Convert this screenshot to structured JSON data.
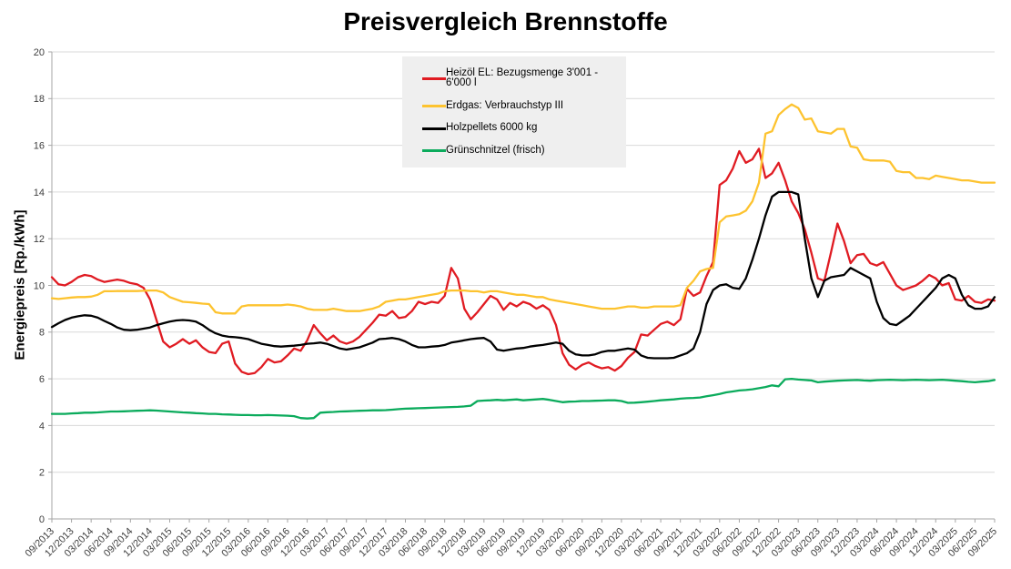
{
  "chart_data": {
    "type": "line",
    "title": "Preisvergleich Brennstoffe",
    "ylabel": "Energiepreis [Rp./kWh]",
    "xlabel": "",
    "ylim": [
      0,
      20
    ],
    "y_tick_step": 2,
    "y_tick_labels": [
      "0",
      "2",
      "4",
      "6",
      "8",
      "10",
      "12",
      "14",
      "16",
      "18",
      "20"
    ],
    "grid": true,
    "legend_position": "top-center-inside",
    "x_interval": "monthly",
    "x_start": "09/2013",
    "x_end": "09/2025",
    "x_tick_labels": [
      "09/2013",
      "12/2013",
      "03/2014",
      "06/2014",
      "09/2014",
      "12/2014",
      "03/2015",
      "06/2015",
      "09/2015",
      "12/2015",
      "03/2016",
      "06/2016",
      "09/2016",
      "12/2016",
      "03/2017",
      "06/2017",
      "09/2017",
      "12/2017",
      "03/2018",
      "06/2018",
      "09/2018",
      "12/2018",
      "03/2019",
      "06/2019",
      "09/2019",
      "12/2019",
      "03/2020",
      "06/2020",
      "09/2020",
      "12/2020",
      "03/2021",
      "06/2021",
      "09/2021",
      "12/2021",
      "03/2022",
      "06/2022",
      "09/2022",
      "12/2022",
      "03/2023",
      "06/2023",
      "09/2023",
      "12/2023",
      "03/2024",
      "06/2024",
      "09/2024",
      "12/2024",
      "03/2025",
      "06/2025",
      "09/2025"
    ],
    "months_per_tick": 3,
    "series": [
      {
        "name": "Heizöl EL: Bezugsmenge 3'001 - 6'000 l",
        "color": "#e01b22",
        "values": [
          10.35,
          10.05,
          10.0,
          10.15,
          10.35,
          10.45,
          10.4,
          10.25,
          10.15,
          10.2,
          10.25,
          10.2,
          10.1,
          10.05,
          9.9,
          9.4,
          8.5,
          7.6,
          7.35,
          7.5,
          7.7,
          7.5,
          7.65,
          7.35,
          7.15,
          7.1,
          7.5,
          7.6,
          6.65,
          6.3,
          6.2,
          6.25,
          6.5,
          6.85,
          6.7,
          6.75,
          7.0,
          7.3,
          7.2,
          7.65,
          8.3,
          7.95,
          7.65,
          7.85,
          7.6,
          7.5,
          7.6,
          7.8,
          8.1,
          8.4,
          8.75,
          8.7,
          8.9,
          8.6,
          8.65,
          8.9,
          9.3,
          9.2,
          9.3,
          9.25,
          9.55,
          10.75,
          10.3,
          9.0,
          8.55,
          8.85,
          9.2,
          9.55,
          9.4,
          8.95,
          9.25,
          9.1,
          9.3,
          9.2,
          9.0,
          9.15,
          8.95,
          8.3,
          7.1,
          6.6,
          6.4,
          6.6,
          6.7,
          6.55,
          6.45,
          6.5,
          6.35,
          6.55,
          6.9,
          7.15,
          7.9,
          7.85,
          8.1,
          8.35,
          8.45,
          8.3,
          8.55,
          9.85,
          9.55,
          9.7,
          10.4,
          11.0,
          14.3,
          14.5,
          15.0,
          15.75,
          15.25,
          15.4,
          15.85,
          14.6,
          14.8,
          15.25,
          14.5,
          13.6,
          13.1,
          12.4,
          11.4,
          10.3,
          10.2,
          11.4,
          12.65,
          11.9,
          10.95,
          11.3,
          11.35,
          10.95,
          10.85,
          11.0,
          10.5,
          10.0,
          9.8,
          9.9,
          10.0,
          10.2,
          10.45,
          10.3,
          10.0,
          10.1,
          9.4,
          9.35,
          9.55,
          9.3,
          9.25,
          9.4,
          9.35
        ]
      },
      {
        "name": "Erdgas: Verbrauchstyp III",
        "color": "#fdc32f",
        "values": [
          9.45,
          9.42,
          9.45,
          9.48,
          9.5,
          9.5,
          9.52,
          9.6,
          9.75,
          9.75,
          9.76,
          9.76,
          9.76,
          9.76,
          9.77,
          9.78,
          9.78,
          9.7,
          9.5,
          9.4,
          9.3,
          9.28,
          9.25,
          9.22,
          9.2,
          8.85,
          8.8,
          8.8,
          8.8,
          9.1,
          9.15,
          9.15,
          9.15,
          9.15,
          9.15,
          9.15,
          9.18,
          9.15,
          9.1,
          9.0,
          8.95,
          8.95,
          8.95,
          9.0,
          8.95,
          8.9,
          8.9,
          8.9,
          8.95,
          9.0,
          9.1,
          9.3,
          9.35,
          9.4,
          9.4,
          9.45,
          9.5,
          9.55,
          9.6,
          9.65,
          9.75,
          9.78,
          9.78,
          9.78,
          9.75,
          9.75,
          9.7,
          9.75,
          9.75,
          9.7,
          9.65,
          9.6,
          9.6,
          9.55,
          9.5,
          9.5,
          9.4,
          9.35,
          9.3,
          9.25,
          9.2,
          9.15,
          9.1,
          9.05,
          9.0,
          9.0,
          9.0,
          9.05,
          9.1,
          9.1,
          9.05,
          9.05,
          9.1,
          9.1,
          9.1,
          9.1,
          9.15,
          9.9,
          10.2,
          10.6,
          10.7,
          10.75,
          12.7,
          12.95,
          13.0,
          13.05,
          13.2,
          13.6,
          14.4,
          16.5,
          16.6,
          17.3,
          17.55,
          17.75,
          17.6,
          17.1,
          17.15,
          16.6,
          16.55,
          16.5,
          16.7,
          16.7,
          15.95,
          15.9,
          15.4,
          15.35,
          15.35,
          15.35,
          15.3,
          14.9,
          14.85,
          14.85,
          14.6,
          14.6,
          14.55,
          14.7,
          14.65,
          14.6,
          14.55,
          14.5,
          14.5,
          14.45,
          14.4,
          14.4,
          14.4
        ]
      },
      {
        "name": "Holzpellets 6000 kg",
        "color": "#000000",
        "values": [
          8.22,
          8.38,
          8.52,
          8.62,
          8.68,
          8.72,
          8.7,
          8.62,
          8.48,
          8.35,
          8.2,
          8.1,
          8.08,
          8.1,
          8.15,
          8.2,
          8.3,
          8.38,
          8.45,
          8.5,
          8.52,
          8.5,
          8.45,
          8.3,
          8.1,
          7.95,
          7.85,
          7.8,
          7.78,
          7.75,
          7.7,
          7.6,
          7.5,
          7.45,
          7.4,
          7.38,
          7.4,
          7.42,
          7.45,
          7.5,
          7.52,
          7.55,
          7.5,
          7.4,
          7.3,
          7.25,
          7.3,
          7.35,
          7.45,
          7.55,
          7.7,
          7.72,
          7.75,
          7.7,
          7.6,
          7.45,
          7.35,
          7.35,
          7.38,
          7.4,
          7.45,
          7.55,
          7.6,
          7.65,
          7.7,
          7.73,
          7.75,
          7.6,
          7.25,
          7.2,
          7.25,
          7.3,
          7.32,
          7.38,
          7.42,
          7.45,
          7.5,
          7.55,
          7.5,
          7.2,
          7.05,
          7.0,
          7.0,
          7.05,
          7.15,
          7.2,
          7.2,
          7.25,
          7.3,
          7.25,
          7.0,
          6.9,
          6.88,
          6.88,
          6.88,
          6.9,
          7.0,
          7.1,
          7.3,
          8.0,
          9.2,
          9.8,
          10.0,
          10.05,
          9.9,
          9.85,
          10.3,
          11.1,
          12.0,
          13.0,
          13.8,
          14.0,
          14.0,
          14.0,
          13.9,
          12.0,
          10.3,
          9.5,
          10.2,
          10.35,
          10.4,
          10.45,
          10.75,
          10.6,
          10.45,
          10.3,
          9.3,
          8.6,
          8.35,
          8.3,
          8.5,
          8.7,
          9.0,
          9.3,
          9.6,
          9.9,
          10.3,
          10.45,
          10.3,
          9.6,
          9.15,
          9.0,
          9.0,
          9.1,
          9.5
        ]
      },
      {
        "name": "Grünschnitzel (frisch)",
        "color": "#0bab5c",
        "values": [
          4.5,
          4.5,
          4.5,
          4.52,
          4.53,
          4.55,
          4.55,
          4.56,
          4.58,
          4.6,
          4.6,
          4.61,
          4.62,
          4.63,
          4.64,
          4.65,
          4.64,
          4.62,
          4.6,
          4.58,
          4.56,
          4.55,
          4.53,
          4.52,
          4.5,
          4.5,
          4.48,
          4.47,
          4.46,
          4.45,
          4.45,
          4.44,
          4.44,
          4.45,
          4.44,
          4.43,
          4.42,
          4.4,
          4.32,
          4.3,
          4.32,
          4.55,
          4.57,
          4.58,
          4.6,
          4.61,
          4.62,
          4.63,
          4.64,
          4.65,
          4.65,
          4.66,
          4.68,
          4.7,
          4.72,
          4.73,
          4.74,
          4.75,
          4.76,
          4.77,
          4.78,
          4.79,
          4.8,
          4.82,
          4.85,
          5.05,
          5.07,
          5.08,
          5.1,
          5.08,
          5.1,
          5.12,
          5.08,
          5.1,
          5.12,
          5.14,
          5.1,
          5.05,
          5.0,
          5.02,
          5.03,
          5.05,
          5.05,
          5.06,
          5.07,
          5.08,
          5.08,
          5.05,
          4.97,
          4.98,
          5.0,
          5.02,
          5.05,
          5.08,
          5.1,
          5.12,
          5.15,
          5.17,
          5.18,
          5.2,
          5.25,
          5.3,
          5.35,
          5.42,
          5.46,
          5.5,
          5.52,
          5.55,
          5.6,
          5.65,
          5.72,
          5.68,
          5.98,
          6.0,
          5.97,
          5.95,
          5.93,
          5.85,
          5.88,
          5.9,
          5.92,
          5.93,
          5.94,
          5.95,
          5.93,
          5.92,
          5.94,
          5.95,
          5.96,
          5.95,
          5.94,
          5.95,
          5.96,
          5.95,
          5.94,
          5.95,
          5.96,
          5.94,
          5.92,
          5.9,
          5.87,
          5.85,
          5.88,
          5.9,
          5.95
        ]
      }
    ]
  },
  "colors": {
    "background": "#ffffff",
    "legend_background": "#efefef",
    "gridline": "#d9d9d9",
    "axis": "#a6a6a6",
    "tick_label": "#3f3f3f"
  }
}
